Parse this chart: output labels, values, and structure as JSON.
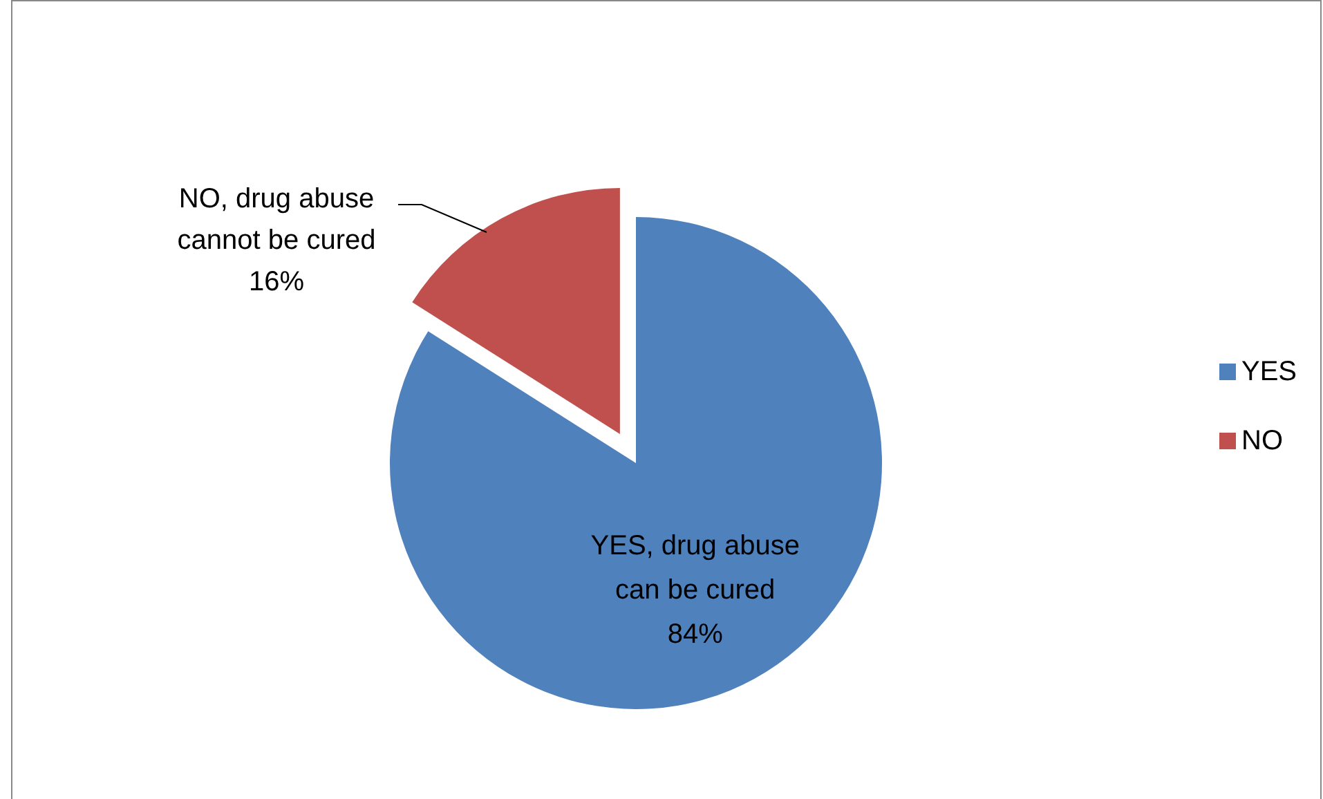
{
  "chart_data": {
    "type": "pie",
    "categories": [
      "YES",
      "NO"
    ],
    "values": [
      84,
      16
    ],
    "colors": [
      "#4f81bd",
      "#c0504d"
    ],
    "value_labels": [
      "YES, drug abuse can be cured 84%",
      "NO, drug abuse cannot be cured 16%"
    ],
    "legend": "right"
  }
}
